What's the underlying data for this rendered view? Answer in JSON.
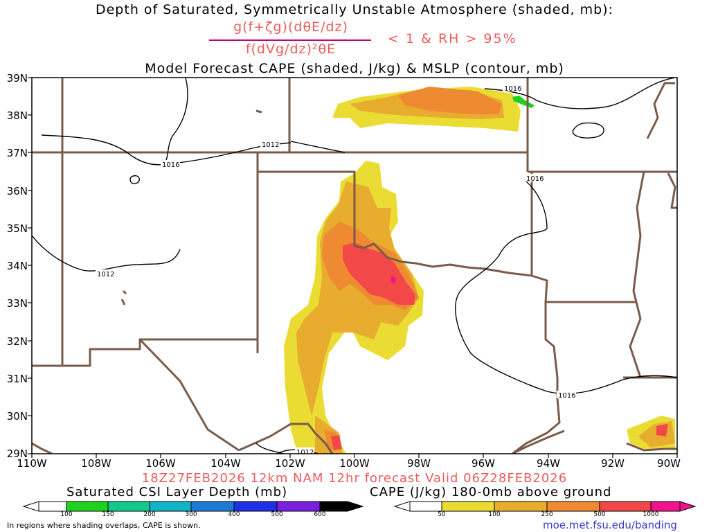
{
  "title": {
    "line1": "Depth of Saturated, Symmetrically Unstable Atmosphere (shaded, mb):",
    "numerator": "g(f+ζg)(dθE/dz)",
    "denominator": "f(dVg/dz)²θE",
    "condition": "< 1 & RH > 95%",
    "line3": "Model Forecast CAPE (shaded, J/kg) & MSLP (contour, mb)"
  },
  "axes": {
    "lat_labels": [
      "39N",
      "38N",
      "37N",
      "36N",
      "35N",
      "34N",
      "33N",
      "32N",
      "31N",
      "30N",
      "29N"
    ],
    "lon_labels": [
      "110W",
      "108W",
      "106W",
      "104W",
      "102W",
      "100W",
      "98W",
      "96W",
      "94W",
      "92W",
      "90W"
    ]
  },
  "pressure_labels": [
    "1016",
    "1012",
    "1016",
    "1012",
    "1016",
    "1016",
    "1012"
  ],
  "valid_text": "18Z27FEB2026 12km NAM 12hr forecast Valid 06Z28FEB2026",
  "colorbar_csi": {
    "title": "Saturated CSI Layer Depth (mb)",
    "ticks": [
      "100",
      "150",
      "200",
      "300",
      "400",
      "500",
      "600"
    ],
    "colors": [
      "#ffffff",
      "#1ed21e",
      "#14c88c",
      "#10b4c8",
      "#1f7ad6",
      "#2030e6",
      "#7a1ee0",
      "#000000"
    ]
  },
  "colorbar_cape": {
    "title": "CAPE (J/kg) 180-0mb above ground",
    "ticks": [
      "50",
      "100",
      "250",
      "500",
      "1000"
    ],
    "colors": [
      "#ffffff",
      "#eadc32",
      "#e8ac2f",
      "#ee8a32",
      "#f24848",
      "#f0148c"
    ]
  },
  "note": "In regions where shading overlaps, CAPE is shown.",
  "url": "moe.met.fsu.edu/banding"
}
